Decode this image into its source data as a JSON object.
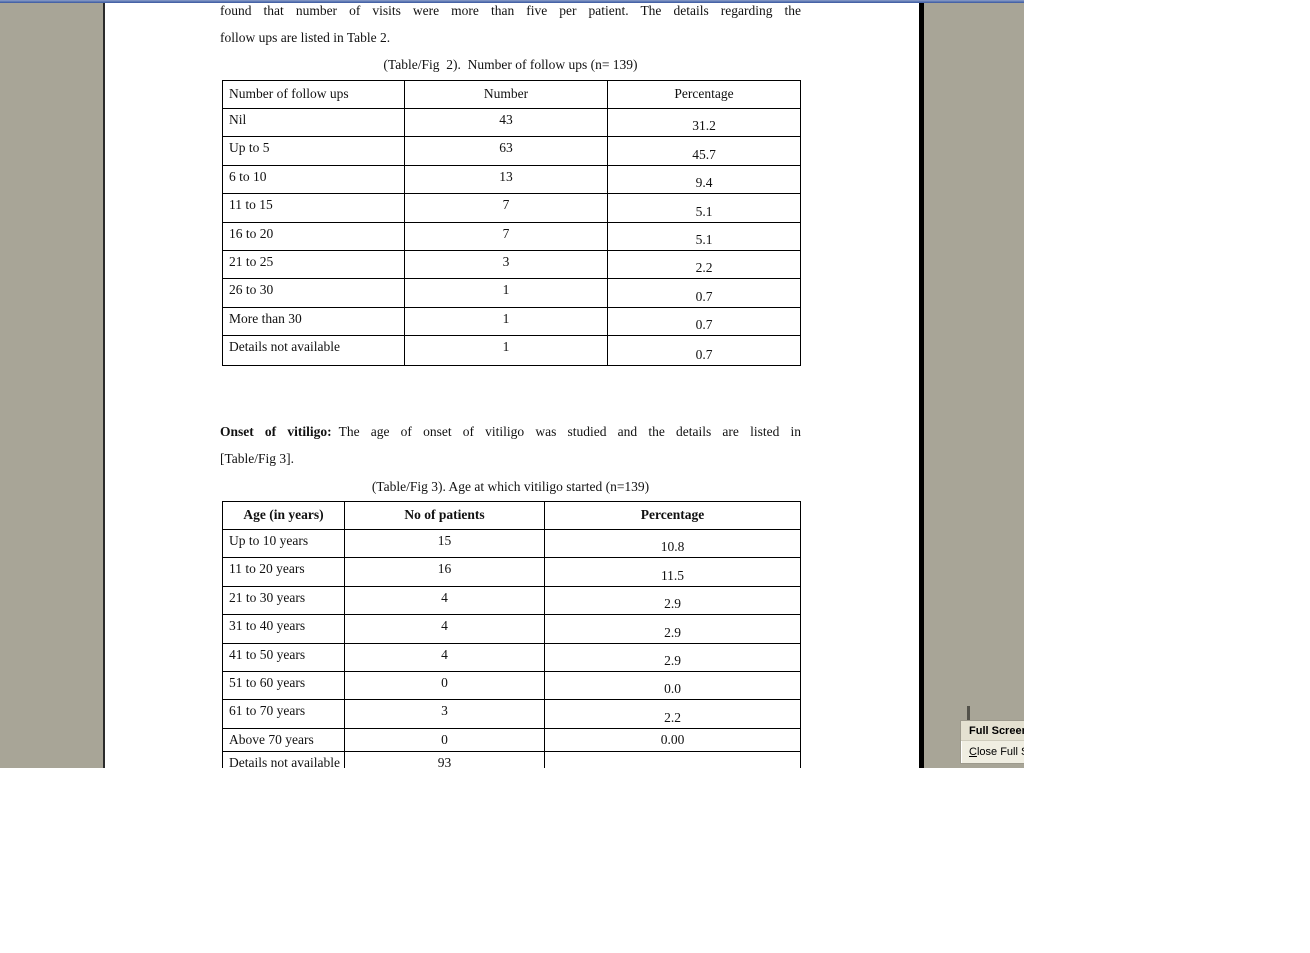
{
  "document": {
    "para1_line1": "found that number of visits were more than five per patient. The details regarding the",
    "para1_line2": "follow ups are listed in Table 2.",
    "onset_heading": "Onset of vitiligo:",
    "onset_line1_rest": "The age of onset of vitiligo was studied and the details are listed in",
    "onset_line2": "[Table/Fig 3].",
    "table2": {
      "caption": "(Table/Fig  2).  Number of follow ups (n= 139)",
      "headers": [
        "Number of follow ups",
        "Number",
        "Percentage"
      ],
      "rows": [
        [
          "Nil",
          "43",
          "31.2"
        ],
        [
          "Up to 5",
          "63",
          "45.7"
        ],
        [
          "6 to 10",
          "13",
          "9.4"
        ],
        [
          "11 to 15",
          "7",
          "5.1"
        ],
        [
          "16 to 20",
          "7",
          "5.1"
        ],
        [
          "21 to 25",
          "3",
          "2.2"
        ],
        [
          "26 to 30",
          "1",
          "0.7"
        ],
        [
          "More than 30",
          "1",
          "0.7"
        ],
        [
          "Details not available",
          "1",
          "0.7"
        ]
      ]
    },
    "table3": {
      "caption": "(Table/Fig 3). Age at which vitiligo started (n=139)",
      "headers": [
        "Age (in years)",
        "No of patients",
        "Percentage"
      ],
      "rows": [
        [
          "Up to 10 years",
          "15",
          "10.8"
        ],
        [
          "11 to 20 years",
          "16",
          "11.5"
        ],
        [
          "21 to 30 years",
          "4",
          "2.9"
        ],
        [
          "31 to 40 years",
          "4",
          "2.9"
        ],
        [
          "41 to 50 years",
          "4",
          "2.9"
        ],
        [
          "51 to 60 years",
          "0",
          "0.0"
        ],
        [
          "61 to 70 years",
          "3",
          "2.2"
        ],
        [
          "Above 70 years",
          "0",
          "0.00"
        ],
        [
          "Details not available",
          "93",
          ""
        ]
      ]
    }
  },
  "toolbar": {
    "title": "Full Screen",
    "button_accesskey": "C",
    "button_rest": "lose Full Screen"
  },
  "colors": {
    "app_background": "#a8a597",
    "page": "#ffffff",
    "page_shadow": "#000000",
    "top_edge_blue": "#5a76b2",
    "toolbar_background": "#f0eee2",
    "toolbar_title_background": "#e4e1d1"
  },
  "chart_data": [
    {
      "type": "table",
      "title": "(Table/Fig 2). Number of follow ups (n= 139)",
      "columns": [
        "Number of follow ups",
        "Number",
        "Percentage"
      ],
      "categories": [
        "Nil",
        "Up to 5",
        "6 to 10",
        "11 to 15",
        "16 to 20",
        "21 to 25",
        "26 to 30",
        "More than 30",
        "Details not available"
      ],
      "series": [
        {
          "name": "Number",
          "values": [
            43,
            63,
            13,
            7,
            7,
            3,
            1,
            1,
            1
          ]
        },
        {
          "name": "Percentage",
          "values": [
            31.2,
            45.7,
            9.4,
            5.1,
            5.1,
            2.2,
            0.7,
            0.7,
            0.7
          ]
        }
      ]
    },
    {
      "type": "table",
      "title": "(Table/Fig 3). Age at which vitiligo started (n=139)",
      "columns": [
        "Age (in years)",
        "No of patients",
        "Percentage"
      ],
      "categories": [
        "Up to 10 years",
        "11 to 20 years",
        "21 to 30 years",
        "31 to 40 years",
        "41 to 50 years",
        "51 to 60 years",
        "61 to 70 years",
        "Above 70 years",
        "Details not available"
      ],
      "series": [
        {
          "name": "No of patients",
          "values": [
            15,
            16,
            4,
            4,
            4,
            0,
            3,
            0,
            93
          ]
        },
        {
          "name": "Percentage",
          "values": [
            10.8,
            11.5,
            2.9,
            2.9,
            2.9,
            0.0,
            2.2,
            0.0,
            null
          ]
        }
      ]
    }
  ]
}
